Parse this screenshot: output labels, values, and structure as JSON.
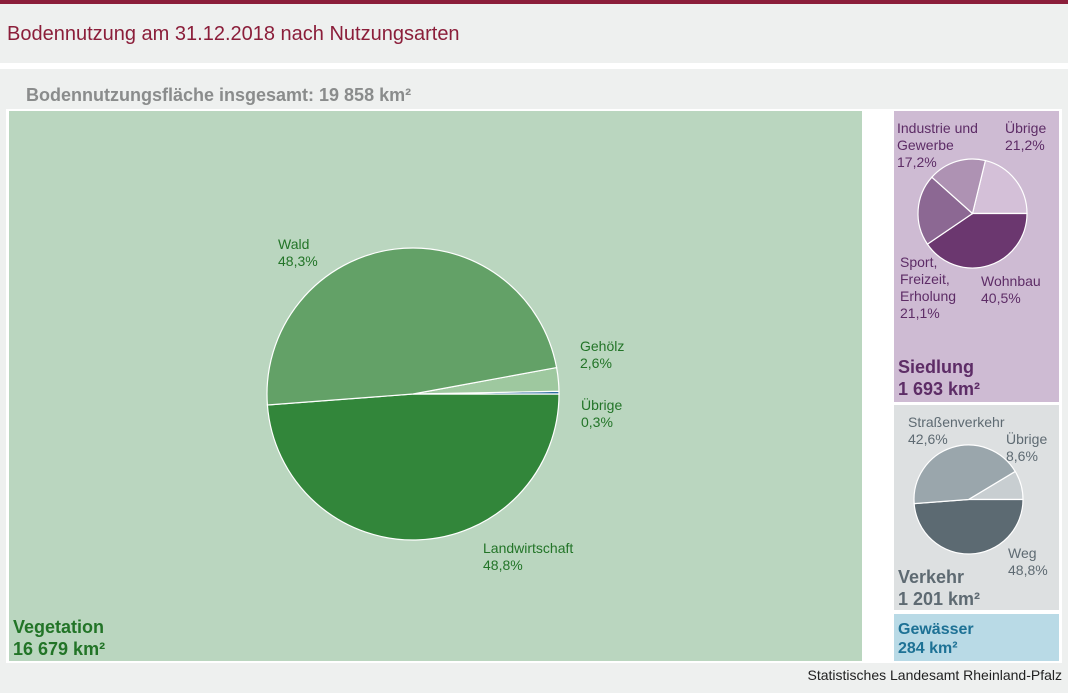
{
  "header": {
    "title": "Bodennutzung am 31.12.2018 nach Nutzungsarten",
    "subtitle": "Bodennutzungsfläche insgesamt: 19 858 km²"
  },
  "source": "Statistisches Landesamt Rheinland-Pfalz",
  "colors": {
    "title": "#8b1e3a",
    "vegetation_bg": "#bad6bf",
    "siedlung_bg": "#cebbd3",
    "verkehr_bg": "#dde0e1",
    "gewaesser_bg": "#b9dae6"
  },
  "chart_data": [
    {
      "type": "pie",
      "title": "Vegetation",
      "total_label": "16 679 km²",
      "total": 16679,
      "slices": [
        {
          "name": "Wald",
          "value": 48.3,
          "label": "48,3%",
          "color": "#63a167"
        },
        {
          "name": "Gehölz",
          "value": 2.6,
          "label": "2,6%",
          "color": "#9ec89f"
        },
        {
          "name": "Übrige",
          "value": 0.3,
          "label": "0,3%",
          "color": "#2d6ea0"
        },
        {
          "name": "Landwirtschaft",
          "value": 48.8,
          "label": "48,8%",
          "color": "#32863a"
        }
      ]
    },
    {
      "type": "pie",
      "title": "Siedlung",
      "total_label": "1 693 km²",
      "total": 1693,
      "slices": [
        {
          "name": "Übrige",
          "value": 21.2,
          "label": "21,2%",
          "color": "#d4c0d8"
        },
        {
          "name": "Wohnbau",
          "value": 40.5,
          "label": "40,5%",
          "color": "#6b376f"
        },
        {
          "name": "Sport, Freizeit, Erholung",
          "value": 21.1,
          "label": "21,1%",
          "color": "#8c6893"
        },
        {
          "name": "Industrie und Gewerbe",
          "value": 17.2,
          "label": "17,2%",
          "color": "#ae92b3"
        }
      ]
    },
    {
      "type": "pie",
      "title": "Verkehr",
      "total_label": "1 201 km²",
      "total": 1201,
      "slices": [
        {
          "name": "Übrige",
          "value": 8.6,
          "label": "8,6%",
          "color": "#c8ced1"
        },
        {
          "name": "Weg",
          "value": 48.8,
          "label": "48,8%",
          "color": "#5c6a72"
        },
        {
          "name": "Straßenverkehr",
          "value": 42.6,
          "label": "42,6%",
          "color": "#9aa6ac"
        }
      ]
    },
    {
      "type": "table",
      "title": "Gewässer",
      "total_label": "284 km²",
      "total": 284
    }
  ]
}
